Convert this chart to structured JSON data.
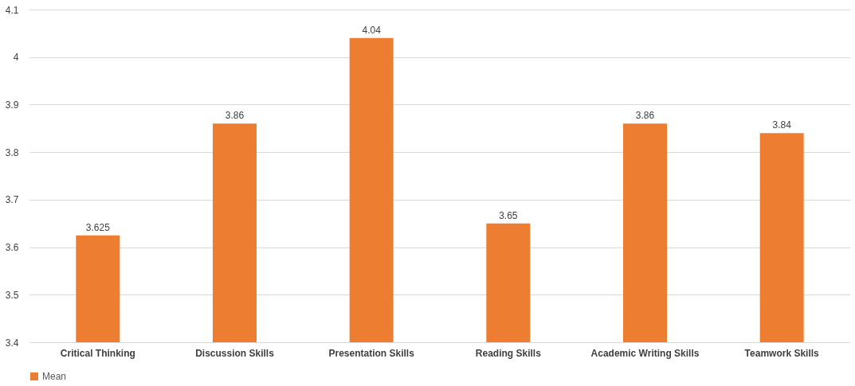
{
  "chart_data": {
    "type": "bar",
    "categories": [
      "Critical Thinking",
      "Discussion Skills",
      "Presentation Skills",
      "Reading Skills",
      "Academic Writing Skills",
      "Teamwork Skills"
    ],
    "series": [
      {
        "name": "Mean",
        "color": "#ed7d31",
        "values": [
          3.625,
          3.86,
          4.04,
          3.65,
          3.86,
          3.84
        ]
      }
    ],
    "ylim": [
      3.4,
      4.1
    ],
    "yticks": [
      3.4,
      3.5,
      3.6,
      3.7,
      3.8,
      3.9,
      4,
      4.1
    ],
    "grid": "y",
    "legend": "bottom",
    "data_labels": true
  }
}
